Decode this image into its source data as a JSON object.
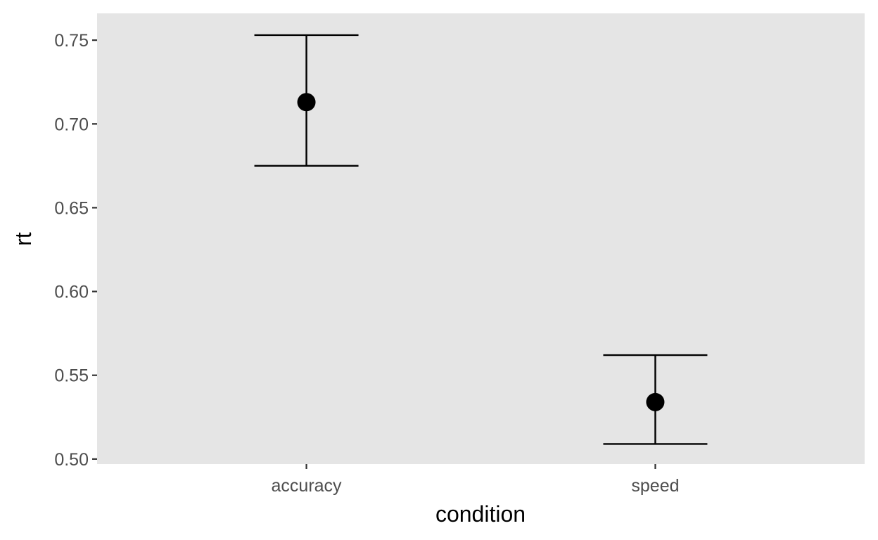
{
  "chart_data": {
    "type": "scatter",
    "title": "",
    "xlabel": "condition",
    "ylabel": "rt",
    "categories": [
      "accuracy",
      "speed"
    ],
    "points": [
      {
        "category": "accuracy",
        "mean": 0.713,
        "lower": 0.675,
        "upper": 0.753
      },
      {
        "category": "speed",
        "mean": 0.534,
        "lower": 0.509,
        "upper": 0.562
      }
    ],
    "ylim": [
      0.497,
      0.766
    ],
    "yticks": [
      0.5,
      0.55,
      0.6,
      0.65,
      0.7,
      0.75
    ],
    "ytick_labels": [
      "0.50",
      "0.55",
      "0.60",
      "0.65",
      "0.70",
      "0.75"
    ],
    "grid": false,
    "legend": "none",
    "colors": {
      "panel_background": "#e5e5e5",
      "marks": "#000000",
      "tick_label": "#4d4d4d",
      "axis_tick": "#333333"
    }
  }
}
